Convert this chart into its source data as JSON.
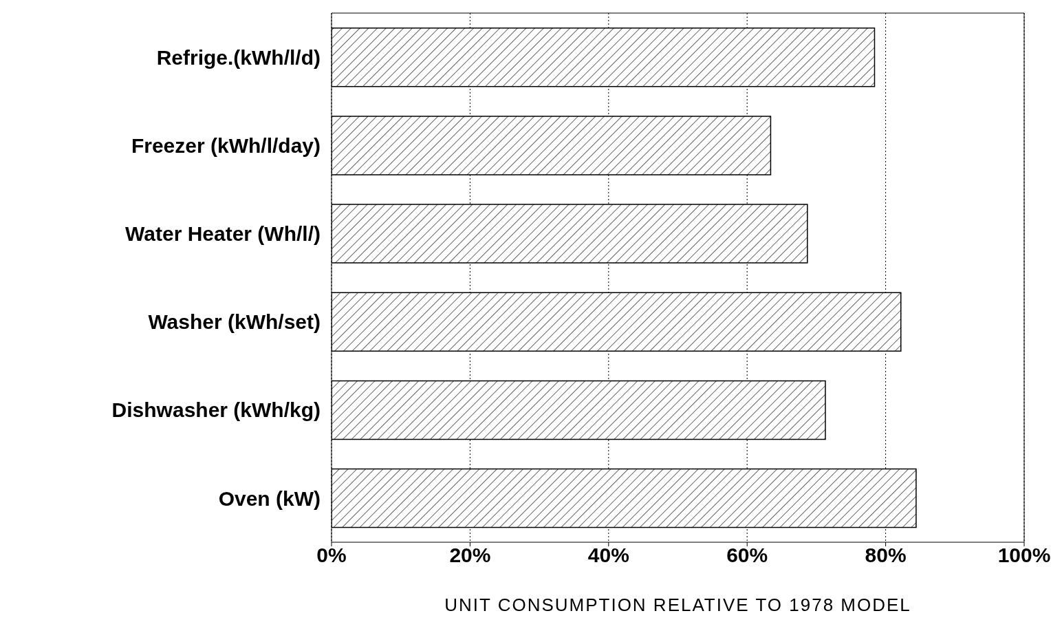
{
  "chart_data": {
    "type": "bar",
    "orientation": "horizontal",
    "xlabel": "UNIT CONSUMPTION RELATIVE TO 1978 MODEL",
    "categories": [
      "Refrige.(kWh/l/d)",
      "Freezer (kWh/l/day)",
      "Water Heater (Wh/l/)",
      "Washer (kWh/set)",
      "Dishwasher (kWh/kg)",
      "Oven (kW)"
    ],
    "values": [
      78.4,
      63.4,
      68.7,
      82.2,
      71.3,
      84.4
    ],
    "color": "#000000",
    "xlim": [
      0,
      100
    ],
    "xticks": [
      {
        "value": 0,
        "label": "0%"
      },
      {
        "value": 20,
        "label": "20%"
      },
      {
        "value": 40,
        "label": "40%"
      },
      {
        "value": 60,
        "label": "60%"
      },
      {
        "value": 80,
        "label": "80%"
      },
      {
        "value": 100,
        "label": "100%"
      }
    ],
    "grid": "x"
  }
}
